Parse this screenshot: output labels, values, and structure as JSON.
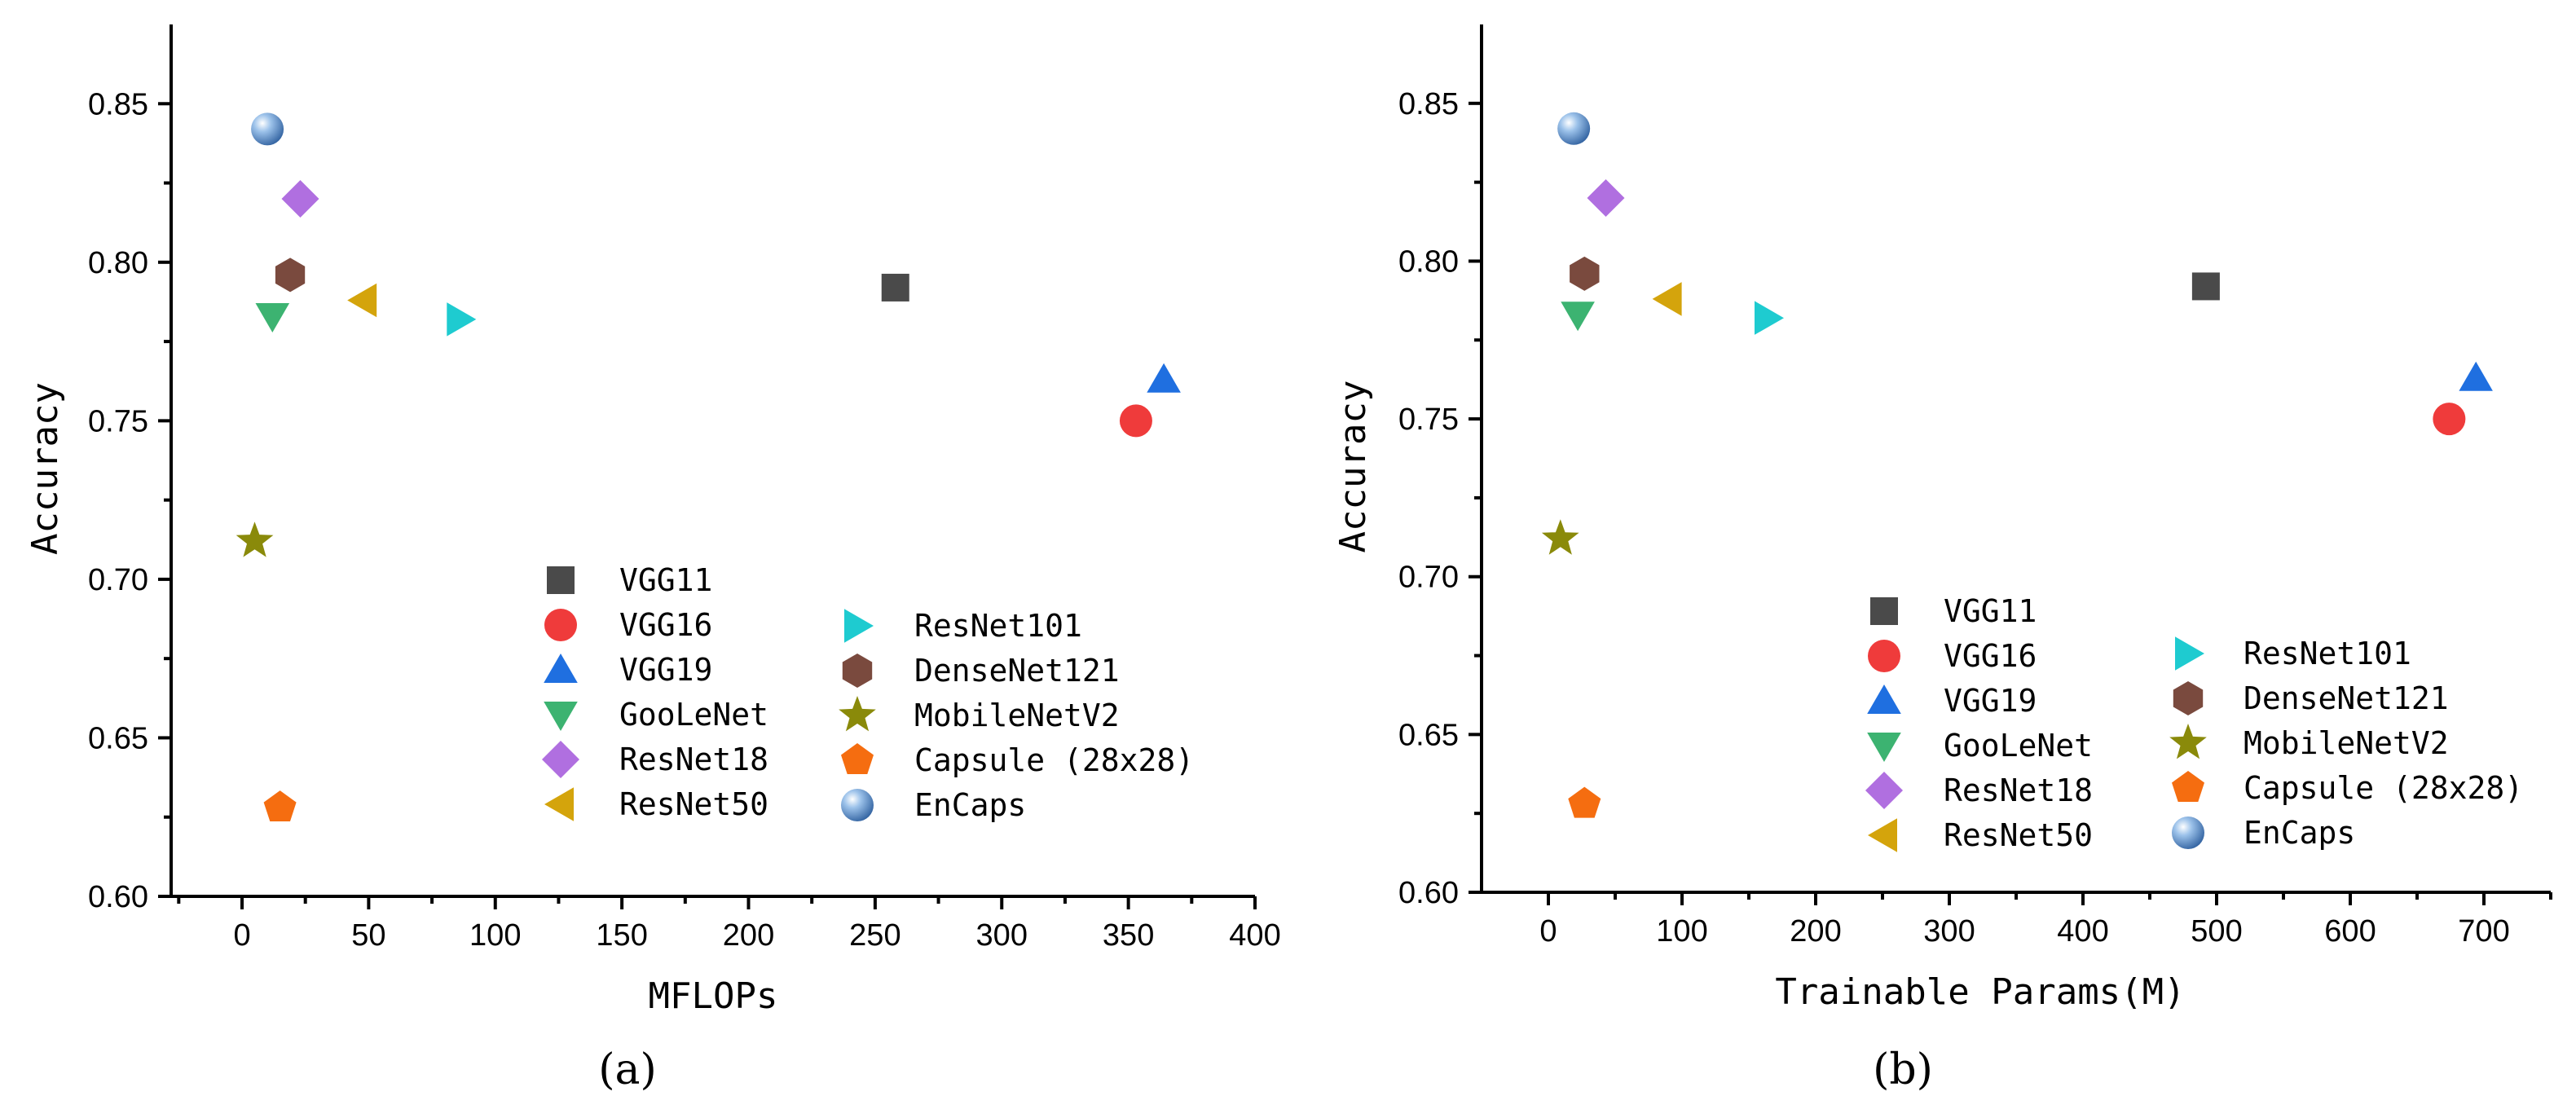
{
  "captions": [
    "(a)",
    "(b)"
  ],
  "series_style": [
    {
      "name": "VGG11",
      "marker": "square",
      "color": "#4a4a4a"
    },
    {
      "name": "VGG16",
      "marker": "circle",
      "color": "#ef3b3b"
    },
    {
      "name": "VGG19",
      "marker": "triangle-up",
      "color": "#1f6fe0"
    },
    {
      "name": "GooLeNet",
      "marker": "triangle-down",
      "color": "#3cb371"
    },
    {
      "name": "ResNet18",
      "marker": "diamond",
      "color": "#b06fe0"
    },
    {
      "name": "ResNet50",
      "marker": "triangle-left",
      "color": "#d4a40c"
    },
    {
      "name": "ResNet101",
      "marker": "triangle-right",
      "color": "#1ecbd0"
    },
    {
      "name": "DenseNet121",
      "marker": "hexagon",
      "color": "#7a4a3e"
    },
    {
      "name": "MobileNetV2",
      "marker": "star",
      "color": "#8a8a0a"
    },
    {
      "name": "Capsule (28x28)",
      "marker": "pentagon",
      "color": "#f56d10"
    },
    {
      "name": "EnCaps",
      "marker": "sphere",
      "color": "#4f87c8"
    }
  ],
  "chart_data": [
    {
      "type": "scatter",
      "title": "",
      "xlabel": "MFLOPs",
      "ylabel": "Accuracy",
      "xlim": [
        -28,
        400
      ],
      "ylim": [
        0.6,
        0.875
      ],
      "xticks": [
        0,
        50,
        100,
        150,
        200,
        250,
        300,
        350,
        400
      ],
      "yticks": [
        0.6,
        0.65,
        0.7,
        0.75,
        0.8,
        0.85
      ],
      "xtick_labels": [
        "0",
        "50",
        "100",
        "150",
        "200",
        "250",
        "300",
        "350",
        "400"
      ],
      "ytick_labels": [
        "0.60",
        "0.65",
        "0.70",
        "0.75",
        "0.80",
        "0.85"
      ],
      "legend_position": "bottom-right",
      "series": [
        {
          "name": "VGG11",
          "x": 258,
          "y": 0.792
        },
        {
          "name": "VGG16",
          "x": 353,
          "y": 0.75
        },
        {
          "name": "VGG19",
          "x": 364,
          "y": 0.763
        },
        {
          "name": "GooLeNet",
          "x": 12,
          "y": 0.783
        },
        {
          "name": "ResNet18",
          "x": 23,
          "y": 0.82
        },
        {
          "name": "ResNet50",
          "x": 48,
          "y": 0.788
        },
        {
          "name": "ResNet101",
          "x": 86,
          "y": 0.782
        },
        {
          "name": "DenseNet121",
          "x": 19,
          "y": 0.796
        },
        {
          "name": "MobileNetV2",
          "x": 5,
          "y": 0.712
        },
        {
          "name": "Capsule (28x28)",
          "x": 15,
          "y": 0.628
        },
        {
          "name": "EnCaps",
          "x": 10,
          "y": 0.842
        }
      ]
    },
    {
      "type": "scatter",
      "title": "",
      "xlabel": "Trainable Params(M)",
      "ylabel": "Accuracy",
      "xlim": [
        -50,
        750
      ],
      "ylim": [
        0.6,
        0.875
      ],
      "xticks": [
        0,
        100,
        200,
        300,
        400,
        500,
        600,
        700
      ],
      "yticks": [
        0.6,
        0.65,
        0.7,
        0.75,
        0.8,
        0.85
      ],
      "xtick_labels": [
        "0",
        "100",
        "200",
        "300",
        "400",
        "500",
        "600",
        "700"
      ],
      "ytick_labels": [
        "0.60",
        "0.65",
        "0.70",
        "0.75",
        "0.80",
        "0.85"
      ],
      "legend_position": "bottom-right",
      "series": [
        {
          "name": "VGG11",
          "x": 492,
          "y": 0.792
        },
        {
          "name": "VGG16",
          "x": 674,
          "y": 0.75
        },
        {
          "name": "VGG19",
          "x": 694,
          "y": 0.763
        },
        {
          "name": "GooLeNet",
          "x": 22,
          "y": 0.783
        },
        {
          "name": "ResNet18",
          "x": 43,
          "y": 0.82
        },
        {
          "name": "ResNet50",
          "x": 90,
          "y": 0.788
        },
        {
          "name": "ResNet101",
          "x": 164,
          "y": 0.782
        },
        {
          "name": "DenseNet121",
          "x": 27,
          "y": 0.796
        },
        {
          "name": "MobileNetV2",
          "x": 9,
          "y": 0.712
        },
        {
          "name": "Capsule (28x28)",
          "x": 27,
          "y": 0.628
        },
        {
          "name": "EnCaps",
          "x": 19,
          "y": 0.842
        }
      ]
    }
  ]
}
